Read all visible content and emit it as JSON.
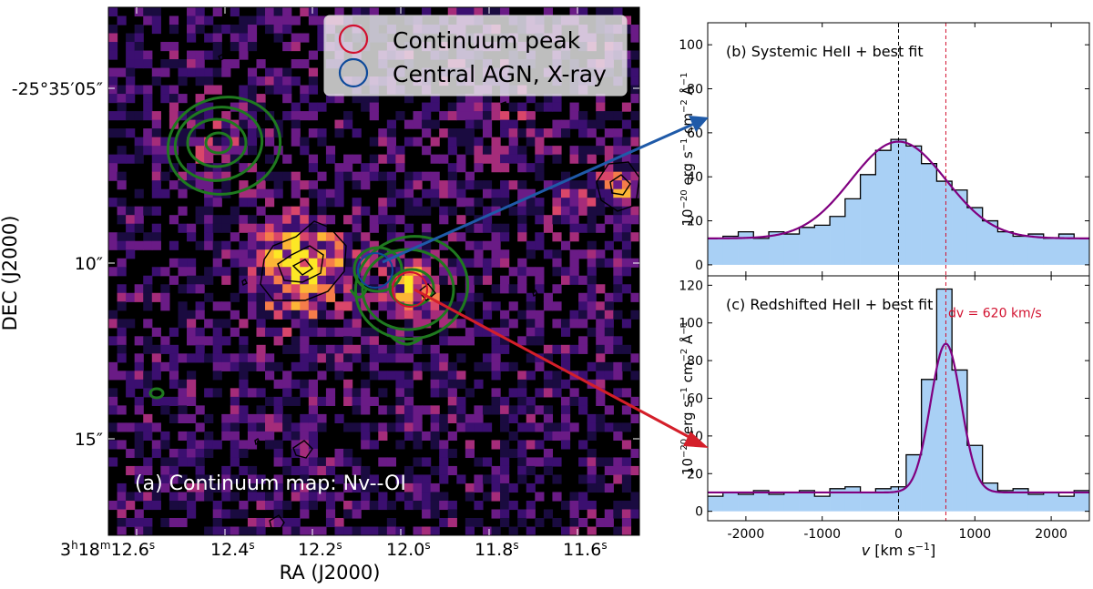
{
  "map": {
    "ra_ticks": [
      {
        "h": "3",
        "m": "18",
        "s": "12.6"
      },
      {
        "h": "",
        "m": "",
        "s": "12.4"
      },
      {
        "h": "",
        "m": "",
        "s": "12.2"
      },
      {
        "h": "",
        "m": "",
        "s": "12.0"
      },
      {
        "h": "",
        "m": "",
        "s": "11.8"
      },
      {
        "h": "",
        "m": "",
        "s": "11.6"
      }
    ],
    "dec_ticks": [
      "-25°35′05″",
      "10″",
      "15″"
    ],
    "xlabel": "RA (J2000)",
    "ylabel": "DEC (J2000)",
    "annotation": "(a) Continuum map: Nv--OI",
    "legend": [
      {
        "label": "Continuum peak",
        "color": "#d2102e"
      },
      {
        "label": "Central AGN, X-ray",
        "color": "#0d4a9a"
      }
    ],
    "colors": {
      "contour_green": "#1f7a1f",
      "contour_black": "#000000",
      "arrow_blue": "#1f5aa8",
      "arrow_red": "#d41f2a"
    }
  },
  "chart_data": [
    {
      "type": "histogram",
      "title": "(b) Systemic HeII + best fit",
      "xlabel": "",
      "ylabel": "10^-20 erg s^-1 cm^-2 Å^-1",
      "xlim": [
        -2500,
        2500
      ],
      "ylim": [
        -5,
        110
      ],
      "yticks": [
        0,
        20,
        40,
        60,
        80,
        100
      ],
      "bin_centers": [
        -2400,
        -2200,
        -2000,
        -1800,
        -1600,
        -1400,
        -1200,
        -1000,
        -800,
        -600,
        -400,
        -200,
        0,
        200,
        400,
        600,
        800,
        1000,
        1200,
        1400,
        1600,
        1800,
        2000,
        2200,
        2400
      ],
      "values": [
        12,
        13,
        15,
        12,
        15,
        14,
        17,
        18,
        22,
        30,
        41,
        52,
        57,
        54,
        46,
        38,
        34,
        26,
        20,
        15,
        13,
        14,
        12,
        14,
        12
      ],
      "fit": {
        "amplitude": 44,
        "center": 0,
        "sigma": 620,
        "baseline": 12
      },
      "vlines": [
        {
          "x": 0,
          "color": "#000000",
          "style": "dashed"
        },
        {
          "x": 620,
          "color": "#d2102e",
          "style": "dashed"
        }
      ],
      "colors": {
        "fill": "#a9d0f5",
        "step": "#000000",
        "fit": "#800080"
      }
    },
    {
      "type": "histogram",
      "title": "(c) Redshifted HeII + best fit",
      "xlabel": "v [km s^-1]",
      "ylabel": "10^-20 erg s^-1 cm^-2 Å^-1",
      "xlim": [
        -2500,
        2500
      ],
      "ylim": [
        -5,
        125
      ],
      "xticks": [
        -2000,
        -1000,
        0,
        1000,
        2000
      ],
      "yticks": [
        0,
        20,
        40,
        60,
        80,
        100,
        120
      ],
      "bin_centers": [
        -2400,
        -2200,
        -2000,
        -1800,
        -1600,
        -1400,
        -1200,
        -1000,
        -800,
        -600,
        -400,
        -200,
        0,
        200,
        400,
        600,
        800,
        1000,
        1200,
        1400,
        1600,
        1800,
        2000,
        2200,
        2400
      ],
      "values": [
        8,
        10,
        9,
        11,
        9,
        10,
        11,
        8,
        12,
        13,
        10,
        12,
        13,
        30,
        70,
        118,
        75,
        35,
        15,
        11,
        12,
        9,
        10,
        8,
        11
      ],
      "fit": {
        "amplitude": 79,
        "center": 620,
        "sigma": 200,
        "baseline": 10
      },
      "vlines": [
        {
          "x": 0,
          "color": "#000000",
          "style": "dashed"
        },
        {
          "x": 620,
          "color": "#d2102e",
          "style": "dashed"
        }
      ],
      "annotation": {
        "text": "dv = 620 km/s",
        "x": 650,
        "y": 103,
        "color": "#d2102e"
      },
      "colors": {
        "fill": "#a9d0f5",
        "step": "#000000",
        "fit": "#800080"
      }
    }
  ]
}
